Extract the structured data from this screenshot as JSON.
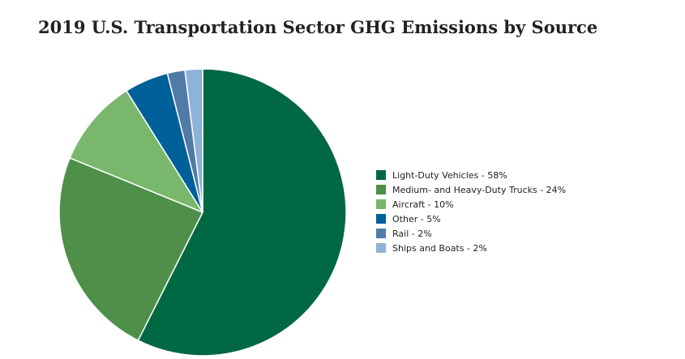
{
  "chart_data": {
    "type": "pie",
    "title": "2019 U.S. Transportation Sector GHG Emissions by Source",
    "categories": [
      "Light-Duty Vehicles",
      "Medium- and Heavy-Duty Trucks",
      "Aircraft",
      "Other",
      "Rail",
      "Ships and Boats"
    ],
    "values": [
      58,
      24,
      10,
      5,
      2,
      2
    ],
    "unit": "%",
    "colors": [
      "#006843",
      "#4e8f4a",
      "#79b86c",
      "#00609a",
      "#4f7ba6",
      "#8eb3d8"
    ],
    "legend_entries": [
      "Light-Duty Vehicles - 58%",
      "Medium- and Heavy-Duty Trucks - 24%",
      "Aircraft - 10%",
      "Other - 5%",
      "Rail - 2%",
      "Ships and Boats - 2%"
    ],
    "legend_position": "right",
    "start_angle": "top, clockwise"
  }
}
